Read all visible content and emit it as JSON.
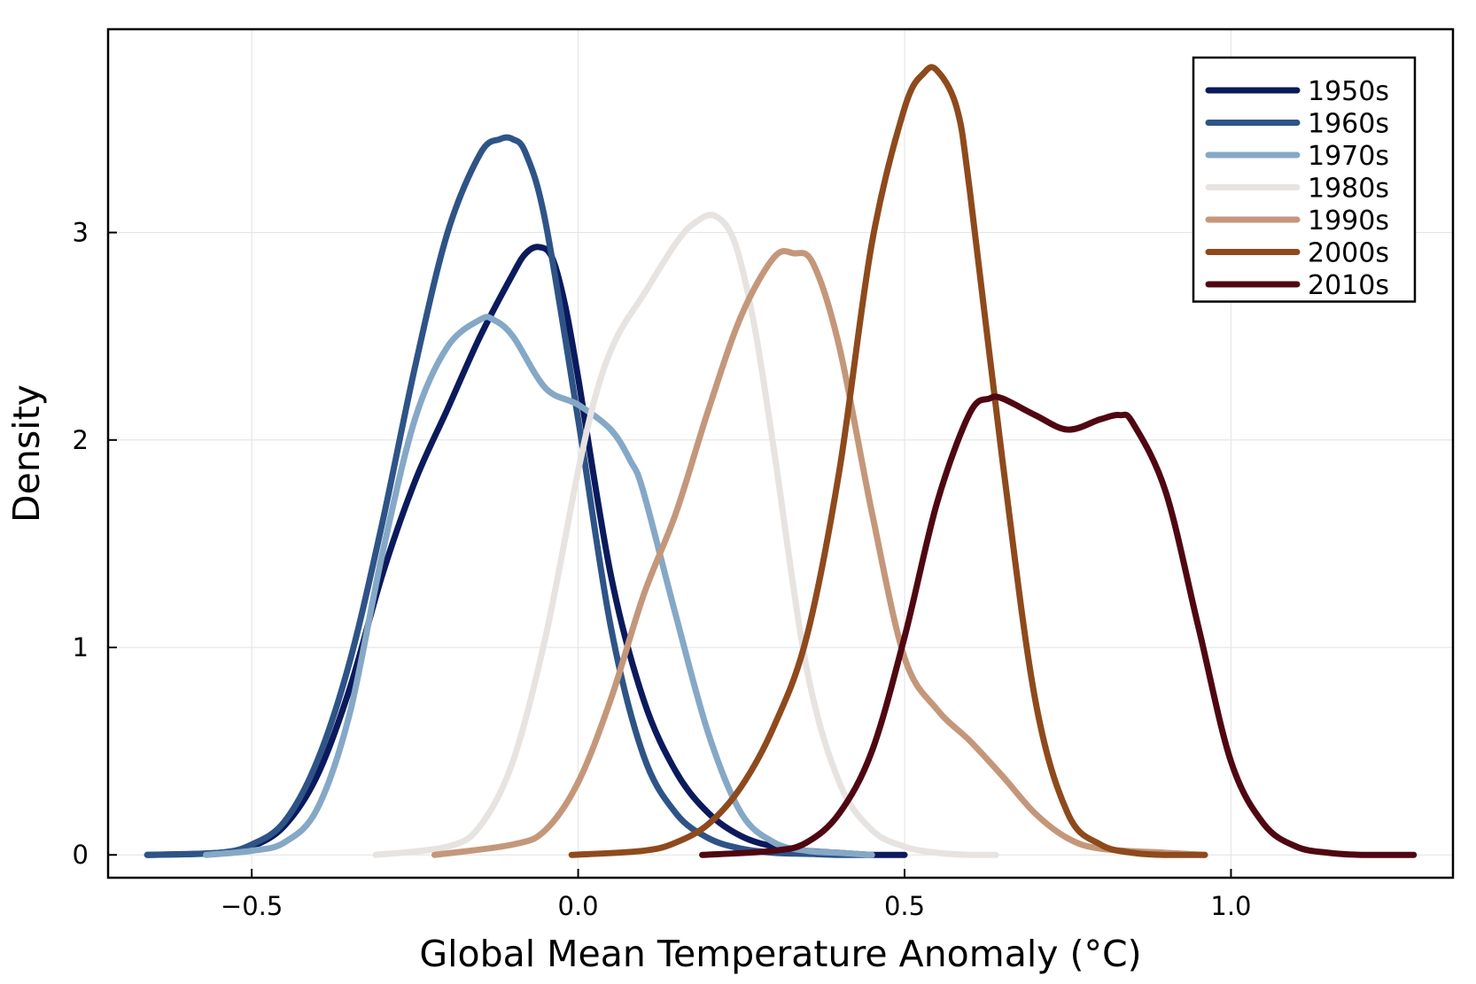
{
  "chart_data": {
    "type": "line",
    "title": "",
    "xlabel": "Global Mean Temperature Anomaly (°C)",
    "ylabel": "Density",
    "xlim": [
      -0.72,
      1.34
    ],
    "ylim": [
      -0.11,
      3.98
    ],
    "xticks": [
      -0.5,
      0.0,
      0.5,
      1.0
    ],
    "xtick_labels": [
      "−0.5",
      "0.0",
      "0.5",
      "1.0"
    ],
    "yticks": [
      0,
      1,
      2,
      3
    ],
    "ytick_labels": [
      "0",
      "1",
      "2",
      "3"
    ],
    "grid": true,
    "legend_position": "top-right",
    "series": [
      {
        "name": "1950s",
        "color": "#0b1a5c",
        "x": [
          -0.66,
          -0.55,
          -0.5,
          -0.45,
          -0.4,
          -0.35,
          -0.3,
          -0.25,
          -0.2,
          -0.15,
          -0.1,
          -0.08,
          -0.06,
          -0.04,
          -0.02,
          0.0,
          0.05,
          0.1,
          0.15,
          0.2,
          0.25,
          0.3,
          0.35,
          0.4,
          0.45,
          0.5
        ],
        "y": [
          0.0,
          0.01,
          0.04,
          0.14,
          0.38,
          0.8,
          1.35,
          1.8,
          2.15,
          2.5,
          2.8,
          2.9,
          2.93,
          2.88,
          2.65,
          2.3,
          1.35,
          0.75,
          0.4,
          0.2,
          0.09,
          0.04,
          0.02,
          0.01,
          0.0,
          0.0
        ]
      },
      {
        "name": "1960s",
        "color": "#2e5487",
        "x": [
          -0.66,
          -0.55,
          -0.5,
          -0.45,
          -0.4,
          -0.35,
          -0.3,
          -0.25,
          -0.2,
          -0.15,
          -0.12,
          -0.1,
          -0.08,
          -0.05,
          0.0,
          0.05,
          0.1,
          0.15,
          0.2,
          0.25,
          0.3,
          0.35,
          0.4,
          0.45
        ],
        "y": [
          0.0,
          0.01,
          0.05,
          0.16,
          0.45,
          0.93,
          1.6,
          2.35,
          3.0,
          3.38,
          3.45,
          3.45,
          3.38,
          3.05,
          2.1,
          1.1,
          0.48,
          0.2,
          0.08,
          0.03,
          0.01,
          0.005,
          0.0,
          0.0
        ]
      },
      {
        "name": "1970s",
        "color": "#85a8c6",
        "x": [
          -0.57,
          -0.5,
          -0.45,
          -0.4,
          -0.35,
          -0.3,
          -0.25,
          -0.2,
          -0.15,
          -0.13,
          -0.1,
          -0.05,
          0.0,
          0.05,
          0.08,
          0.1,
          0.15,
          0.2,
          0.25,
          0.3,
          0.35,
          0.4,
          0.45
        ],
        "y": [
          0.0,
          0.02,
          0.06,
          0.22,
          0.68,
          1.45,
          2.1,
          2.45,
          2.58,
          2.58,
          2.5,
          2.25,
          2.17,
          2.05,
          1.9,
          1.75,
          1.15,
          0.58,
          0.2,
          0.06,
          0.02,
          0.01,
          0.0
        ]
      },
      {
        "name": "1980s",
        "color": "#e7e3e1",
        "x": [
          -0.31,
          -0.2,
          -0.15,
          -0.1,
          -0.05,
          0.0,
          0.03,
          0.06,
          0.1,
          0.15,
          0.18,
          0.21,
          0.24,
          0.27,
          0.3,
          0.35,
          0.4,
          0.45,
          0.5,
          0.55,
          0.6,
          0.64
        ],
        "y": [
          0.0,
          0.04,
          0.14,
          0.45,
          1.05,
          1.85,
          2.25,
          2.5,
          2.7,
          2.95,
          3.05,
          3.08,
          2.95,
          2.55,
          1.95,
          0.9,
          0.35,
          0.12,
          0.04,
          0.01,
          0.0,
          0.0
        ]
      },
      {
        "name": "1990s",
        "color": "#c4977b",
        "x": [
          -0.22,
          -0.1,
          -0.05,
          0.0,
          0.05,
          0.1,
          0.15,
          0.2,
          0.25,
          0.3,
          0.33,
          0.36,
          0.4,
          0.45,
          0.5,
          0.55,
          0.6,
          0.65,
          0.7,
          0.75,
          0.8,
          0.9,
          0.96
        ],
        "y": [
          0.0,
          0.05,
          0.12,
          0.35,
          0.75,
          1.25,
          1.65,
          2.15,
          2.6,
          2.88,
          2.9,
          2.85,
          2.45,
          1.65,
          0.95,
          0.7,
          0.55,
          0.38,
          0.2,
          0.08,
          0.03,
          0.01,
          0.0
        ]
      },
      {
        "name": "2000s",
        "color": "#8e4a1c",
        "x": [
          -0.01,
          0.1,
          0.15,
          0.2,
          0.25,
          0.3,
          0.35,
          0.4,
          0.45,
          0.5,
          0.53,
          0.55,
          0.58,
          0.6,
          0.65,
          0.7,
          0.75,
          0.8,
          0.85,
          0.9,
          0.96
        ],
        "y": [
          0.0,
          0.02,
          0.06,
          0.15,
          0.33,
          0.62,
          1.05,
          1.85,
          2.95,
          3.6,
          3.77,
          3.78,
          3.6,
          3.2,
          1.9,
          0.75,
          0.2,
          0.05,
          0.01,
          0.0,
          0.0
        ]
      },
      {
        "name": "2010s",
        "color": "#4f0712",
        "x": [
          0.19,
          0.3,
          0.35,
          0.4,
          0.45,
          0.5,
          0.55,
          0.6,
          0.63,
          0.65,
          0.7,
          0.75,
          0.8,
          0.83,
          0.85,
          0.9,
          0.95,
          1.0,
          1.05,
          1.1,
          1.15,
          1.2,
          1.28
        ],
        "y": [
          0.0,
          0.02,
          0.06,
          0.2,
          0.5,
          1.05,
          1.7,
          2.13,
          2.2,
          2.2,
          2.12,
          2.05,
          2.1,
          2.12,
          2.08,
          1.75,
          1.1,
          0.45,
          0.15,
          0.04,
          0.01,
          0.0,
          0.0
        ]
      }
    ]
  }
}
